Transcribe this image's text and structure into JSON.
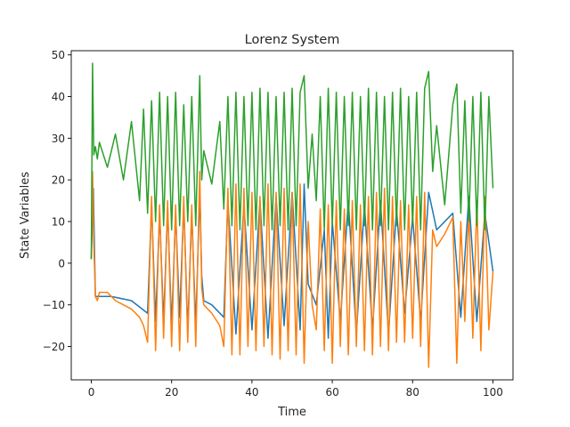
{
  "chart_data": {
    "type": "line",
    "title": "Lorenz System",
    "xlabel": "Time",
    "ylabel": "State Variables",
    "xlim": [
      -5,
      105
    ],
    "ylim": [
      -28,
      51
    ],
    "xticks": [
      0,
      20,
      40,
      60,
      80,
      100
    ],
    "yticks": [
      -20,
      -10,
      0,
      10,
      20,
      30,
      40,
      50
    ],
    "grid": false,
    "legend": "none",
    "series": [
      {
        "color": "#1f77b4",
        "description": "x(t) (largely hidden beneath y(t))",
        "x": [
          0,
          0.5,
          1,
          5,
          10,
          14,
          15,
          16,
          17,
          18,
          19,
          20,
          21,
          22,
          23,
          24,
          25,
          26,
          27,
          27.5,
          28,
          30,
          33,
          34,
          36,
          38,
          40,
          42,
          44,
          46,
          48,
          50,
          52,
          53,
          54,
          56,
          58,
          59,
          60,
          62,
          64,
          66,
          68,
          70,
          72,
          74,
          76,
          78,
          80,
          82,
          84,
          86,
          90,
          92,
          94,
          96,
          98,
          100
        ],
        "values": [
          1,
          18,
          -8,
          -8,
          -9,
          -12,
          14,
          -14,
          12,
          -14,
          13,
          -15,
          12,
          -13,
          14,
          -16,
          12,
          -15,
          17,
          -3,
          -9,
          -10,
          -13,
          15,
          -17,
          14,
          -16,
          15,
          -18,
          16,
          -15,
          17,
          -16,
          19,
          -5,
          -10,
          8,
          -18,
          10,
          -14,
          15,
          -17,
          14,
          -16,
          15,
          -17,
          13,
          -12,
          11,
          -14,
          17,
          8,
          12,
          -13,
          16,
          -14,
          12,
          -2
        ]
      },
      {
        "color": "#ff7f0e",
        "description": "y(t)",
        "x": [
          0,
          0.3,
          0.6,
          1,
          1.5,
          2,
          4,
          6,
          8,
          10,
          12,
          13,
          14,
          15,
          16,
          17,
          18,
          19,
          20,
          21,
          22,
          23,
          24,
          25,
          26,
          27,
          27.5,
          28,
          30,
          32,
          33,
          34,
          35,
          36,
          37,
          38,
          39,
          40,
          41,
          42,
          43,
          44,
          45,
          46,
          47,
          48,
          49,
          50,
          51,
          52,
          53,
          54,
          55,
          56,
          57,
          58,
          59,
          60,
          61,
          62,
          63,
          64,
          65,
          66,
          67,
          68,
          69,
          70,
          71,
          72,
          73,
          74,
          75,
          76,
          77,
          78,
          79,
          80,
          81,
          82,
          83,
          84,
          85,
          86,
          88,
          90,
          91,
          92,
          93,
          94,
          95,
          96,
          97,
          98,
          99,
          100
        ],
        "values": [
          1,
          22,
          5,
          -8,
          -9,
          -7,
          -7,
          -9,
          -10,
          -11,
          -13,
          -15,
          -19,
          16,
          -21,
          14,
          -18,
          15,
          -20,
          14,
          -21,
          16,
          -19,
          14,
          -20,
          22,
          -6,
          -10,
          -12,
          -15,
          -20,
          18,
          -22,
          19,
          -22,
          18,
          -20,
          17,
          -21,
          16,
          -20,
          19,
          -22,
          17,
          -23,
          18,
          -21,
          17,
          -22,
          19,
          -24,
          10,
          -10,
          -16,
          13,
          -21,
          14,
          -24,
          15,
          -20,
          13,
          -22,
          15,
          -20,
          14,
          -21,
          16,
          -22,
          17,
          -20,
          18,
          -21,
          16,
          -19,
          15,
          -19,
          14,
          -18,
          16,
          -20,
          17,
          -25,
          8,
          4,
          7,
          11,
          -24,
          10,
          -14,
          13,
          -18,
          15,
          -21,
          16,
          -16,
          -2
        ]
      },
      {
        "color": "#2ca02c",
        "description": "z(t)",
        "x": [
          0,
          0.3,
          0.6,
          1,
          1.5,
          2,
          4,
          6,
          8,
          10,
          12,
          13,
          14,
          15,
          16,
          17,
          18,
          19,
          20,
          21,
          22,
          23,
          24,
          25,
          26,
          27,
          27.5,
          28,
          30,
          32,
          33,
          34,
          35,
          36,
          37,
          38,
          39,
          40,
          41,
          42,
          43,
          44,
          45,
          46,
          47,
          48,
          49,
          50,
          51,
          52,
          53,
          54,
          55,
          56,
          57,
          58,
          59,
          60,
          61,
          62,
          63,
          64,
          65,
          66,
          67,
          68,
          69,
          70,
          71,
          72,
          73,
          74,
          75,
          76,
          77,
          78,
          79,
          80,
          81,
          82,
          83,
          84,
          85,
          86,
          88,
          90,
          91,
          92,
          93,
          94,
          95,
          96,
          97,
          98,
          99,
          100
        ],
        "values": [
          1,
          48,
          26,
          28,
          25,
          29,
          23,
          31,
          20,
          34,
          15,
          37,
          12,
          39,
          10,
          41,
          9,
          40,
          8,
          41,
          9,
          38,
          10,
          40,
          9,
          45,
          20,
          27,
          19,
          34,
          13,
          40,
          9,
          41,
          8,
          40,
          9,
          41,
          8,
          42,
          9,
          41,
          8,
          40,
          9,
          41,
          8,
          42,
          9,
          41,
          45,
          18,
          31,
          15,
          40,
          8,
          42,
          9,
          41,
          8,
          40,
          9,
          41,
          8,
          40,
          9,
          42,
          8,
          41,
          9,
          40,
          8,
          41,
          9,
          42,
          8,
          40,
          9,
          41,
          8,
          42,
          46,
          22,
          33,
          14,
          38,
          43,
          12,
          39,
          10,
          40,
          9,
          41,
          8,
          40,
          18
        ]
      }
    ]
  }
}
